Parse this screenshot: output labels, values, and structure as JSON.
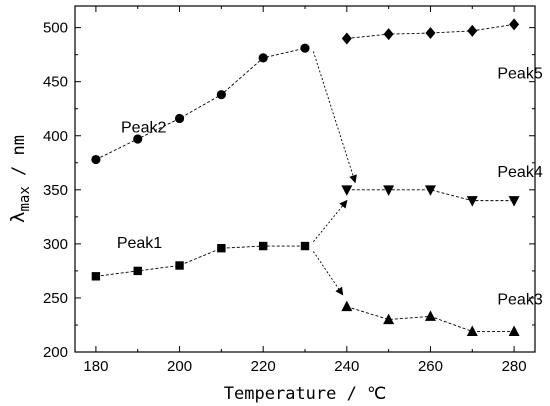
{
  "chart_data": {
    "type": "line",
    "xlabel": "Temperature / ℃",
    "ylabel_main": "λ",
    "ylabel_sub": "max",
    "ylabel_unit": " / nm",
    "xlim": [
      175,
      285
    ],
    "ylim": [
      200,
      520
    ],
    "xticks": [
      180,
      190,
      200,
      210,
      220,
      230,
      240,
      250,
      260,
      270,
      280
    ],
    "xtick_labels": [
      "180",
      "200",
      "220",
      "240",
      "260",
      "280"
    ],
    "yticks": [
      200,
      250,
      300,
      350,
      400,
      450,
      500
    ],
    "grid": false,
    "series": [
      {
        "name": "Peak2",
        "marker": "circle",
        "x": [
          180,
          190,
          200,
          210,
          220,
          230
        ],
        "values": [
          378,
          397,
          416,
          438,
          472,
          481
        ]
      },
      {
        "name": "Peak5",
        "marker": "diamond",
        "x": [
          240,
          250,
          260,
          270,
          280
        ],
        "values": [
          490,
          494,
          495,
          497,
          503
        ]
      },
      {
        "name": "Peak1",
        "marker": "square",
        "x": [
          180,
          190,
          200,
          210,
          220,
          230
        ],
        "values": [
          270,
          275,
          280,
          296,
          298,
          298
        ]
      },
      {
        "name": "Peak4",
        "marker": "triangle-down",
        "x": [
          240,
          250,
          260,
          270,
          280
        ],
        "values": [
          350,
          350,
          350,
          340,
          340
        ]
      },
      {
        "name": "Peak3",
        "marker": "triangle-up",
        "x": [
          240,
          250,
          260,
          270,
          280
        ],
        "values": [
          242,
          230,
          233,
          219,
          219
        ]
      }
    ],
    "arrows": [
      {
        "from": [
          232,
          478
        ],
        "to": [
          242,
          357
        ]
      },
      {
        "from": [
          232,
          302
        ],
        "to": [
          240,
          340
        ]
      },
      {
        "from": [
          232,
          293
        ],
        "to": [
          239,
          253
        ]
      }
    ],
    "annotations": [
      {
        "text": "Peak2",
        "x": 186,
        "y": 403
      },
      {
        "text": "Peak5",
        "x": 276,
        "y": 453
      },
      {
        "text": "Peak4",
        "x": 276,
        "y": 362
      },
      {
        "text": "Peak1",
        "x": 185,
        "y": 296
      },
      {
        "text": "Peak3",
        "x": 276,
        "y": 244
      }
    ]
  }
}
